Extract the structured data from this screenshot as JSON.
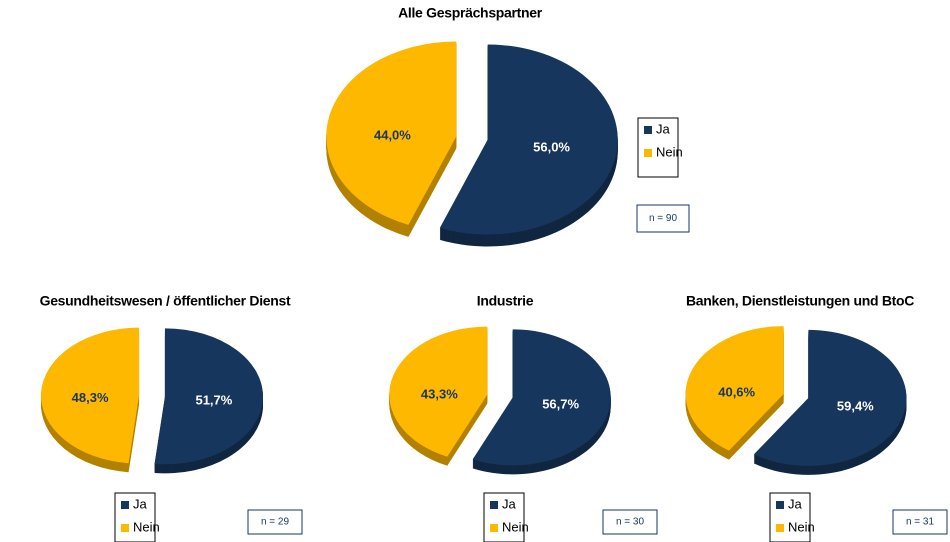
{
  "chart_data": [
    {
      "type": "pie",
      "title": "Alle Gesprächspartner",
      "categories": [
        "Ja",
        "Nein"
      ],
      "values": [
        56.0,
        44.0
      ],
      "value_labels": [
        "56,0%",
        "44,0%"
      ],
      "colors": [
        "#17365d",
        "#ffb800"
      ],
      "annotation": "n = 90"
    },
    {
      "type": "pie",
      "title": "Gesundheitswesen / öffentlicher Dienst",
      "categories": [
        "Ja",
        "Nein"
      ],
      "values": [
        51.7,
        48.3
      ],
      "value_labels": [
        "51,7%",
        "48,3%"
      ],
      "colors": [
        "#17365d",
        "#ffb800"
      ],
      "annotation": "n = 29"
    },
    {
      "type": "pie",
      "title": "Industrie",
      "categories": [
        "Ja",
        "Nein"
      ],
      "values": [
        56.7,
        43.3
      ],
      "value_labels": [
        "56,7%",
        "43,3%"
      ],
      "colors": [
        "#17365d",
        "#ffb800"
      ],
      "annotation": "n = 30"
    },
    {
      "type": "pie",
      "title": "Banken, Dienstleistungen und BtoC",
      "categories": [
        "Ja",
        "Nein"
      ],
      "values": [
        59.4,
        40.6
      ],
      "value_labels": [
        "59,4%",
        "40,6%"
      ],
      "colors": [
        "#17365d",
        "#ffb800"
      ],
      "annotation": "n = 31"
    }
  ]
}
